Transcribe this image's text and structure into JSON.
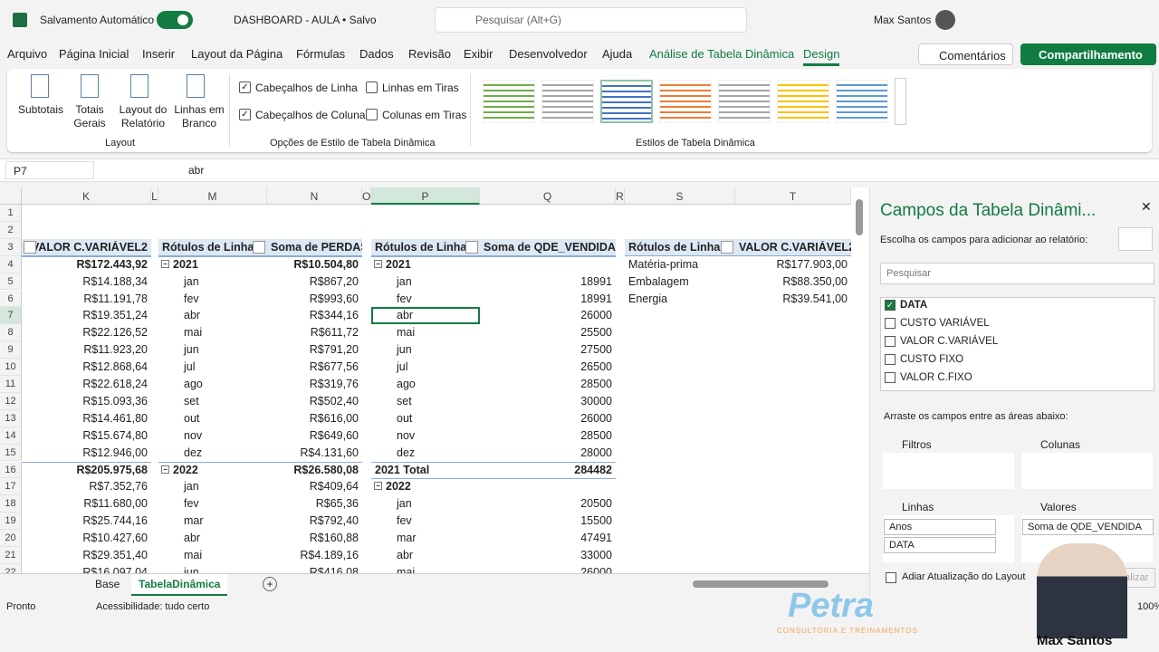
{
  "title_bar": {
    "autosave": "Salvamento Automático",
    "file": "DASHBOARD - AULA • Salvo",
    "search": "Pesquisar (Alt+G)",
    "user": "Max Santos"
  },
  "menu": {
    "tabs": [
      "Arquivo",
      "Página Inicial",
      "Inserir",
      "Layout da Página",
      "Fórmulas",
      "Dados",
      "Revisão",
      "Exibir",
      "Desenvolvedor",
      "Ajuda",
      "Análise de Tabela Dinâmica",
      "Design"
    ],
    "active_tab": 11,
    "actions": [
      "Comentários",
      "Compartilhamento"
    ]
  },
  "ribbon": {
    "layout_buttons": [
      "Subtotais",
      "Totais Gerais",
      "Layout do Relatório",
      "Linhas em Branco"
    ],
    "layout_group": "Layout",
    "options": [
      {
        "label": "Cabeçalhos de Linha",
        "checked": true
      },
      {
        "label": "Linhas em Tiras",
        "checked": false
      },
      {
        "label": "Cabeçalhos de Coluna",
        "checked": true
      },
      {
        "label": "Colunas em Tiras",
        "checked": false
      }
    ],
    "options_group": "Opções de Estilo de Tabela Dinâmica",
    "styles_group": "Estilos de Tabela Dinâmica"
  },
  "formula_bar": {
    "name_box": "P7",
    "formula": "abr"
  },
  "sheet": {
    "columns": [
      "K",
      "L",
      "M",
      "N",
      "O",
      "P",
      "Q",
      "R",
      "S",
      "T"
    ],
    "rows": [
      {
        "n": 1,
        "cells": {}
      },
      {
        "n": 2,
        "cells": {}
      },
      {
        "n": 3,
        "cells": {
          "K": "VALOR C.VARIÁVEL2",
          "M": "Rótulos de Linha",
          "N": "Soma de PERDAS",
          "P": "Rótulos de Linha",
          "Q": "Soma de QDE_VENDIDA",
          "S": "Rótulos de Linha",
          "T": "VALOR C.VARIÁVEL2"
        }
      },
      {
        "n": 4,
        "cells": {
          "K": "R$172.443,92",
          "M": "2021",
          "N": "R$10.504,80",
          "P": "2021",
          "S": "Matéria-prima",
          "T": "R$177.903,00"
        }
      },
      {
        "n": 5,
        "cells": {
          "K": "R$14.188,34",
          "M": "jan",
          "N": "R$867,20",
          "P": "jan",
          "Q": "18991",
          "S": "Embalagem",
          "T": "R$88.350,00"
        }
      },
      {
        "n": 6,
        "cells": {
          "K": "R$11.191,78",
          "M": "fev",
          "N": "R$993,60",
          "P": "fev",
          "Q": "18991",
          "S": "Energia",
          "T": "R$39.541,00"
        }
      },
      {
        "n": 7,
        "cells": {
          "K": "R$19.351,24",
          "M": "abr",
          "N": "R$344,16",
          "P": "abr",
          "Q": "26000"
        }
      },
      {
        "n": 8,
        "cells": {
          "K": "R$22.126,52",
          "M": "mai",
          "N": "R$611,72",
          "P": "mai",
          "Q": "25500"
        }
      },
      {
        "n": 9,
        "cells": {
          "K": "R$11.923,20",
          "M": "jun",
          "N": "R$791,20",
          "P": "jun",
          "Q": "27500"
        }
      },
      {
        "n": 10,
        "cells": {
          "K": "R$12.868,64",
          "M": "jul",
          "N": "R$677,56",
          "P": "jul",
          "Q": "26500"
        }
      },
      {
        "n": 11,
        "cells": {
          "K": "R$22.618,24",
          "M": "ago",
          "N": "R$319,76",
          "P": "ago",
          "Q": "28500"
        }
      },
      {
        "n": 12,
        "cells": {
          "K": "R$15.093,36",
          "M": "set",
          "N": "R$502,40",
          "P": "set",
          "Q": "30000"
        }
      },
      {
        "n": 13,
        "cells": {
          "K": "R$14.461,80",
          "M": "out",
          "N": "R$616,00",
          "P": "out",
          "Q": "26000"
        }
      },
      {
        "n": 14,
        "cells": {
          "K": "R$15.674,80",
          "M": "nov",
          "N": "R$649,60",
          "P": "nov",
          "Q": "28500"
        }
      },
      {
        "n": 15,
        "cells": {
          "K": "R$12.946,00",
          "M": "dez",
          "N": "R$4.131,60",
          "P": "dez",
          "Q": "28000"
        }
      },
      {
        "n": 16,
        "cells": {
          "K": "R$205.975,68",
          "M": "2022",
          "N": "R$26.580,08",
          "P": "2021 Total",
          "Q": "284482"
        }
      },
      {
        "n": 17,
        "cells": {
          "K": "R$7.352,76",
          "M": "jan",
          "N": "R$409,64",
          "P": "2022"
        }
      },
      {
        "n": 18,
        "cells": {
          "K": "R$11.680,00",
          "M": "fev",
          "N": "R$65,36",
          "P": "jan",
          "Q": "20500"
        }
      },
      {
        "n": 19,
        "cells": {
          "K": "R$25.744,16",
          "M": "mar",
          "N": "R$792,40",
          "P": "fev",
          "Q": "15500"
        }
      },
      {
        "n": 20,
        "cells": {
          "K": "R$10.427,60",
          "M": "abr",
          "N": "R$160,88",
          "P": "mar",
          "Q": "47491"
        }
      },
      {
        "n": 21,
        "cells": {
          "K": "R$29.351,40",
          "M": "mai",
          "N": "R$4.189,16",
          "P": "abr",
          "Q": "33000"
        }
      },
      {
        "n": 22,
        "cells": {
          "K": "R$16.097,04",
          "M": "jun",
          "N": "R$416,08",
          "P": "mai",
          "Q": "26000"
        }
      }
    ],
    "tabs": [
      "Base",
      "TabelaDinâmica"
    ],
    "active_tab": 1
  },
  "status": {
    "ready": "Pronto",
    "accessibility": "Acessibilidade: tudo certo",
    "zoom": "100%"
  },
  "pivot_pane": {
    "title": "Campos da Tabela Dinâmi...",
    "subtitle": "Escolha os campos para adicionar ao relatório:",
    "search": "Pesquisar",
    "fields": [
      {
        "label": "DATA",
        "checked": true
      },
      {
        "label": "CUSTO VARIÁVEL",
        "checked": false
      },
      {
        "label": "VALOR C.VARIÁVEL",
        "checked": false
      },
      {
        "label": "CUSTO FIXO",
        "checked": false
      },
      {
        "label": "VALOR C.FIXO",
        "checked": false
      }
    ],
    "drag_hint": "Arraste os campos entre as áreas abaixo:",
    "filters": "Filtros",
    "columns": "Colunas",
    "rows": "Linhas",
    "values": "Valores",
    "row_fields": [
      "Anos",
      "DATA"
    ],
    "value_fields": [
      "Soma de QDE_VENDIDA"
    ],
    "defer": "Adiar Atualização do Layout",
    "update": "Atualizar"
  },
  "overlay": {
    "logo": "Petra",
    "tagline": "CONSULTORIA E TREINAMENTOS",
    "presenter": "Max Santos"
  }
}
